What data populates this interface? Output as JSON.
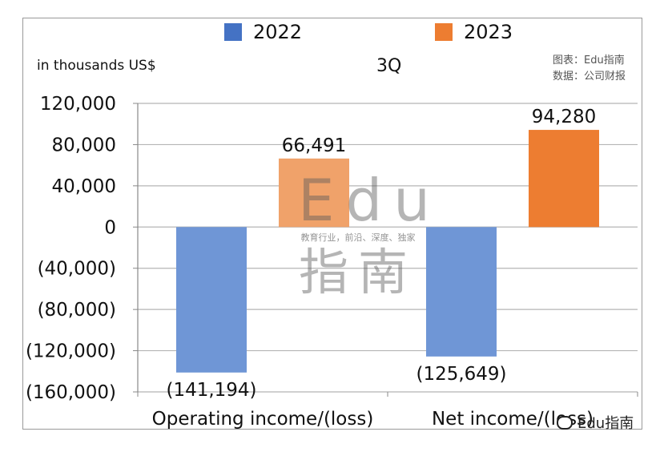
{
  "chart_data": {
    "type": "bar",
    "title": "3Q",
    "ylabel": "in thousands US$",
    "categories": [
      "Operating income/(loss)",
      "Net income/(loss)"
    ],
    "series": [
      {
        "name": "2022",
        "values": [
          -141194,
          -125649
        ],
        "color": "#6f96d6",
        "labels": [
          "(141,194)",
          "(125,649)"
        ]
      },
      {
        "name": "2023",
        "values": [
          66491,
          94280
        ],
        "colors": [
          "#f0a26a",
          "#ed7d31"
        ],
        "labels": [
          "66,491",
          "94,280"
        ]
      }
    ],
    "ylim": [
      -160000,
      120000
    ],
    "yticks": [
      120000,
      80000,
      40000,
      0,
      -40000,
      -80000,
      -120000,
      -160000
    ],
    "ytick_labels": [
      "120,000",
      "80,000",
      "40,000",
      "0",
      "(40,000)",
      "(80,000)",
      "(120,000)",
      "(160,000)"
    ],
    "grid": true
  },
  "legend": [
    {
      "label": "2022",
      "color": "#4472c4"
    },
    {
      "label": "2023",
      "color": "#ed7d31"
    }
  ],
  "source": {
    "chart_by": "图表：Edu指南",
    "data_from": "数据：公司财报"
  },
  "watermark": {
    "brand": "Edu",
    "tagline": "教育行业，前沿、深度、独家",
    "chinese": "指南"
  },
  "corner_mark": "Edu指南"
}
